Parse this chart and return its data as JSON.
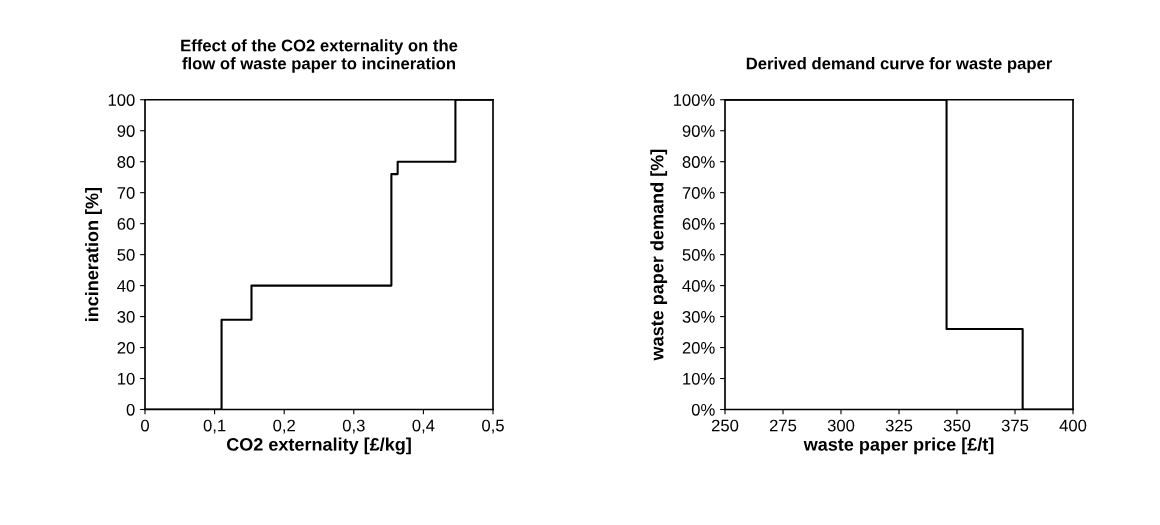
{
  "chart_data": [
    {
      "type": "step",
      "title": "Effect of the CO2 externality on the\nflow of waste paper to incineration",
      "xlabel": "CO2 externality [£/kg]",
      "ylabel": "incineration [%]",
      "x": [
        0,
        0.11,
        0.153,
        0.354,
        0.363,
        0.446,
        0.5
      ],
      "values": [
        0,
        29,
        40,
        76,
        80,
        100,
        100
      ],
      "color": "#000000",
      "xlim": [
        0,
        0.5
      ],
      "xticks": [
        0,
        {
          "value": 0.1,
          "label": "0,1"
        },
        {
          "value": 0.2,
          "label": "0,2"
        },
        {
          "value": 0.3,
          "label": "0,3"
        },
        {
          "value": 0.4,
          "label": "0,4"
        },
        {
          "value": 0.5,
          "label": "0,5"
        }
      ],
      "ylim": [
        0,
        100
      ],
      "yticks": [
        0,
        10,
        20,
        30,
        40,
        50,
        60,
        70,
        80,
        90,
        100
      ],
      "grid": false
    },
    {
      "type": "step",
      "title": "Derived demand curve for waste paper",
      "xlabel": "waste paper price [£/t]",
      "ylabel": "waste paper demand [%]",
      "x": [
        250,
        345.5,
        378.3,
        400
      ],
      "values": [
        100,
        26,
        0,
        0
      ],
      "color": "#000000",
      "xlim": [
        250,
        400
      ],
      "xticks": [
        250,
        275,
        300,
        325,
        350,
        375,
        400
      ],
      "ylim": [
        0,
        100
      ],
      "yticks": [
        {
          "value": 0,
          "label": "0%"
        },
        {
          "value": 10,
          "label": "10%"
        },
        {
          "value": 20,
          "label": "20%"
        },
        {
          "value": 30,
          "label": "30%"
        },
        {
          "value": 40,
          "label": "40%"
        },
        {
          "value": 50,
          "label": "50%"
        },
        {
          "value": 60,
          "label": "60%"
        },
        {
          "value": 70,
          "label": "70%"
        },
        {
          "value": 80,
          "label": "80%"
        },
        {
          "value": 90,
          "label": "90%"
        },
        {
          "value": 100,
          "label": "100%"
        }
      ],
      "grid": false
    }
  ]
}
